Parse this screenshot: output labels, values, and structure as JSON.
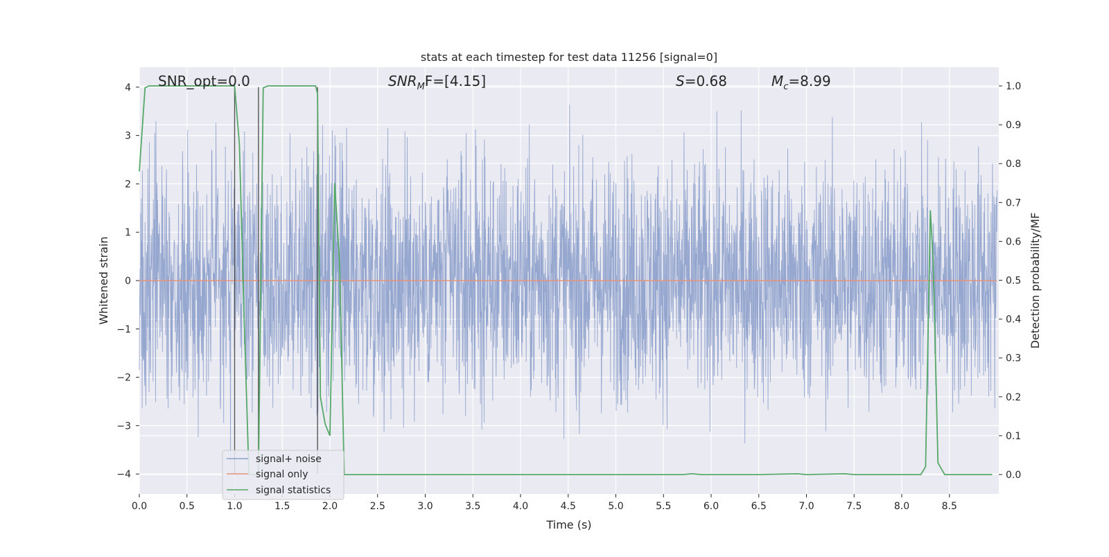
{
  "chart_data": {
    "type": "line",
    "title": "stats at each timestep for test data 11256 [signal=0]",
    "xlabel": "Time (s)",
    "ylabel": "Whitened strain",
    "ylabel_right": "Detection probability/MF",
    "xlim": [
      0.0,
      9.0
    ],
    "ylim": [
      -4.35,
      4.4
    ],
    "ylim_right": [
      -0.05,
      1.045
    ],
    "x_ticks": [
      0.0,
      0.5,
      1.0,
      1.5,
      2.0,
      2.5,
      3.0,
      3.5,
      4.0,
      4.5,
      5.0,
      5.5,
      6.0,
      6.5,
      7.0,
      7.5,
      8.0,
      8.5
    ],
    "x_tick_labels": [
      "0.0",
      "0.5",
      "1.0",
      "1.5",
      "2.0",
      "2.5",
      "3.0",
      "3.5",
      "4.0",
      "4.5",
      "5.0",
      "5.5",
      "6.0",
      "6.5",
      "7.0",
      "7.5",
      "8.0",
      "8.5"
    ],
    "y_ticks": [
      4,
      3,
      2,
      1,
      0,
      -1,
      -2,
      -3,
      -4
    ],
    "y_tick_labels": [
      "4",
      "3",
      "2",
      "1",
      "0",
      "−1",
      "−2",
      "−3",
      "−4"
    ],
    "y_right_ticks": [
      1.0,
      0.9,
      0.8,
      0.7,
      0.6,
      0.5,
      0.4,
      0.3,
      0.2,
      0.1,
      0.0
    ],
    "y_right_tick_labels": [
      "1.0",
      "0.9",
      "0.8",
      "0.7",
      "0.6",
      "0.5",
      "0.4",
      "0.3",
      "0.2",
      "0.1",
      "0.0"
    ],
    "annotations": [
      {
        "id": "snr-opt",
        "label": "SNR_opt=0.0"
      },
      {
        "id": "snr-mf",
        "label": "SNR",
        "sub": "M",
        "tail": "F=[4.15]"
      },
      {
        "id": "s",
        "label": "S",
        "tail": "=0.68"
      },
      {
        "id": "mc",
        "label": "M",
        "sub": "c",
        "tail": "=8.99"
      }
    ],
    "vertical_markers": [
      1.0,
      1.25,
      1.87
    ],
    "grid": true,
    "legend_position": "bottom-left",
    "series": [
      {
        "name": "signal+ noise",
        "color": "#8da0cb",
        "kind": "noise",
        "amplitude_typical": 2.0,
        "amplitude_max": 4.0
      },
      {
        "name": "signal only",
        "color": "#e5937a",
        "x": [
          0.0,
          9.0
        ],
        "y": [
          0.0,
          0.0
        ]
      },
      {
        "name": "signal statistics",
        "color": "#55a868",
        "axis": "right",
        "x": [
          0.0,
          0.06,
          0.1,
          0.5,
          0.9,
          1.0,
          1.05,
          1.1,
          1.15,
          1.2,
          1.25,
          1.3,
          1.35,
          1.85,
          1.87,
          1.9,
          1.95,
          2.0,
          2.05,
          2.1,
          2.15,
          2.18,
          2.3,
          5.7,
          5.8,
          5.9,
          6.5,
          6.9,
          7.0,
          7.4,
          7.5,
          8.2,
          8.25,
          8.3,
          8.33,
          8.38,
          8.45,
          8.95
        ],
        "y": [
          0.78,
          0.995,
          1.0,
          1.0,
          1.0,
          1.0,
          0.85,
          0.4,
          0.0,
          0.0,
          0.0,
          0.995,
          1.0,
          1.0,
          0.98,
          0.2,
          0.13,
          0.1,
          0.75,
          0.55,
          0.0,
          0.0,
          0.0,
          0.0,
          0.002,
          0.0,
          0.0,
          0.002,
          0.0,
          0.002,
          0.0,
          0.0,
          0.02,
          0.68,
          0.55,
          0.03,
          0.0,
          0.0
        ]
      }
    ]
  }
}
